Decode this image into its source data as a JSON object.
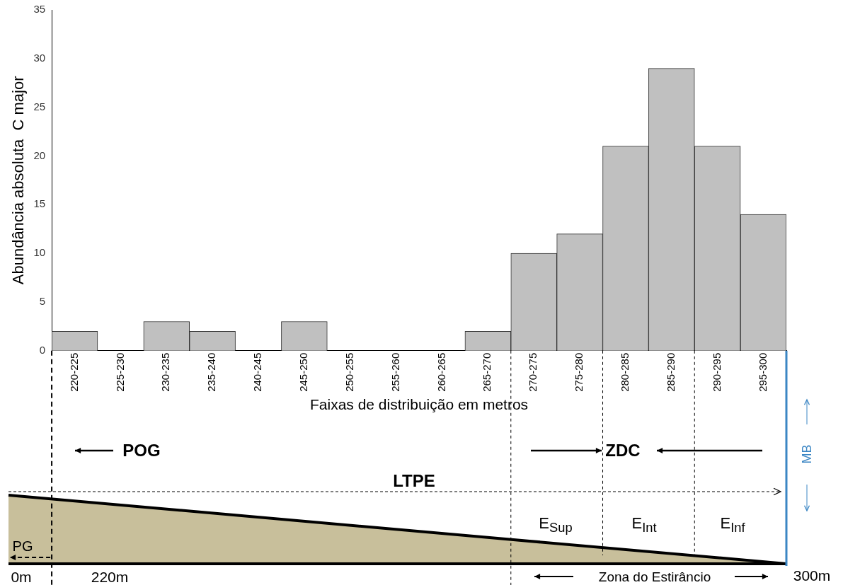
{
  "chart_data": {
    "type": "bar",
    "xlabel": "Faixas de distribuição em metros",
    "ylabel": "Abundância absoluta  C major",
    "categories": [
      "220-225",
      "225-230",
      "230-235",
      "235-240",
      "240-245",
      "245-250",
      "250-255",
      "255-260",
      "260-265",
      "265-270",
      "270-275",
      "275-280",
      "280-285",
      "285-290",
      "290-295",
      "295-300"
    ],
    "values": [
      2,
      0,
      3,
      2,
      0,
      3,
      0,
      0,
      0,
      2,
      10,
      12,
      21,
      29,
      21,
      14
    ],
    "color": "#c0c0c0",
    "ylim": [
      0,
      35
    ],
    "yticks": [
      0,
      5,
      10,
      15,
      20,
      25,
      30,
      35
    ],
    "grid": false,
    "legend": false,
    "annotations": [
      "POG",
      "ZDC",
      "LTPE",
      "E$_{Sup}$",
      "E$_{Int}$",
      "E$_{Inf}$",
      "PG",
      "0m",
      "220m",
      "Zona do Estirâncio",
      "300m",
      "MB"
    ]
  }
}
